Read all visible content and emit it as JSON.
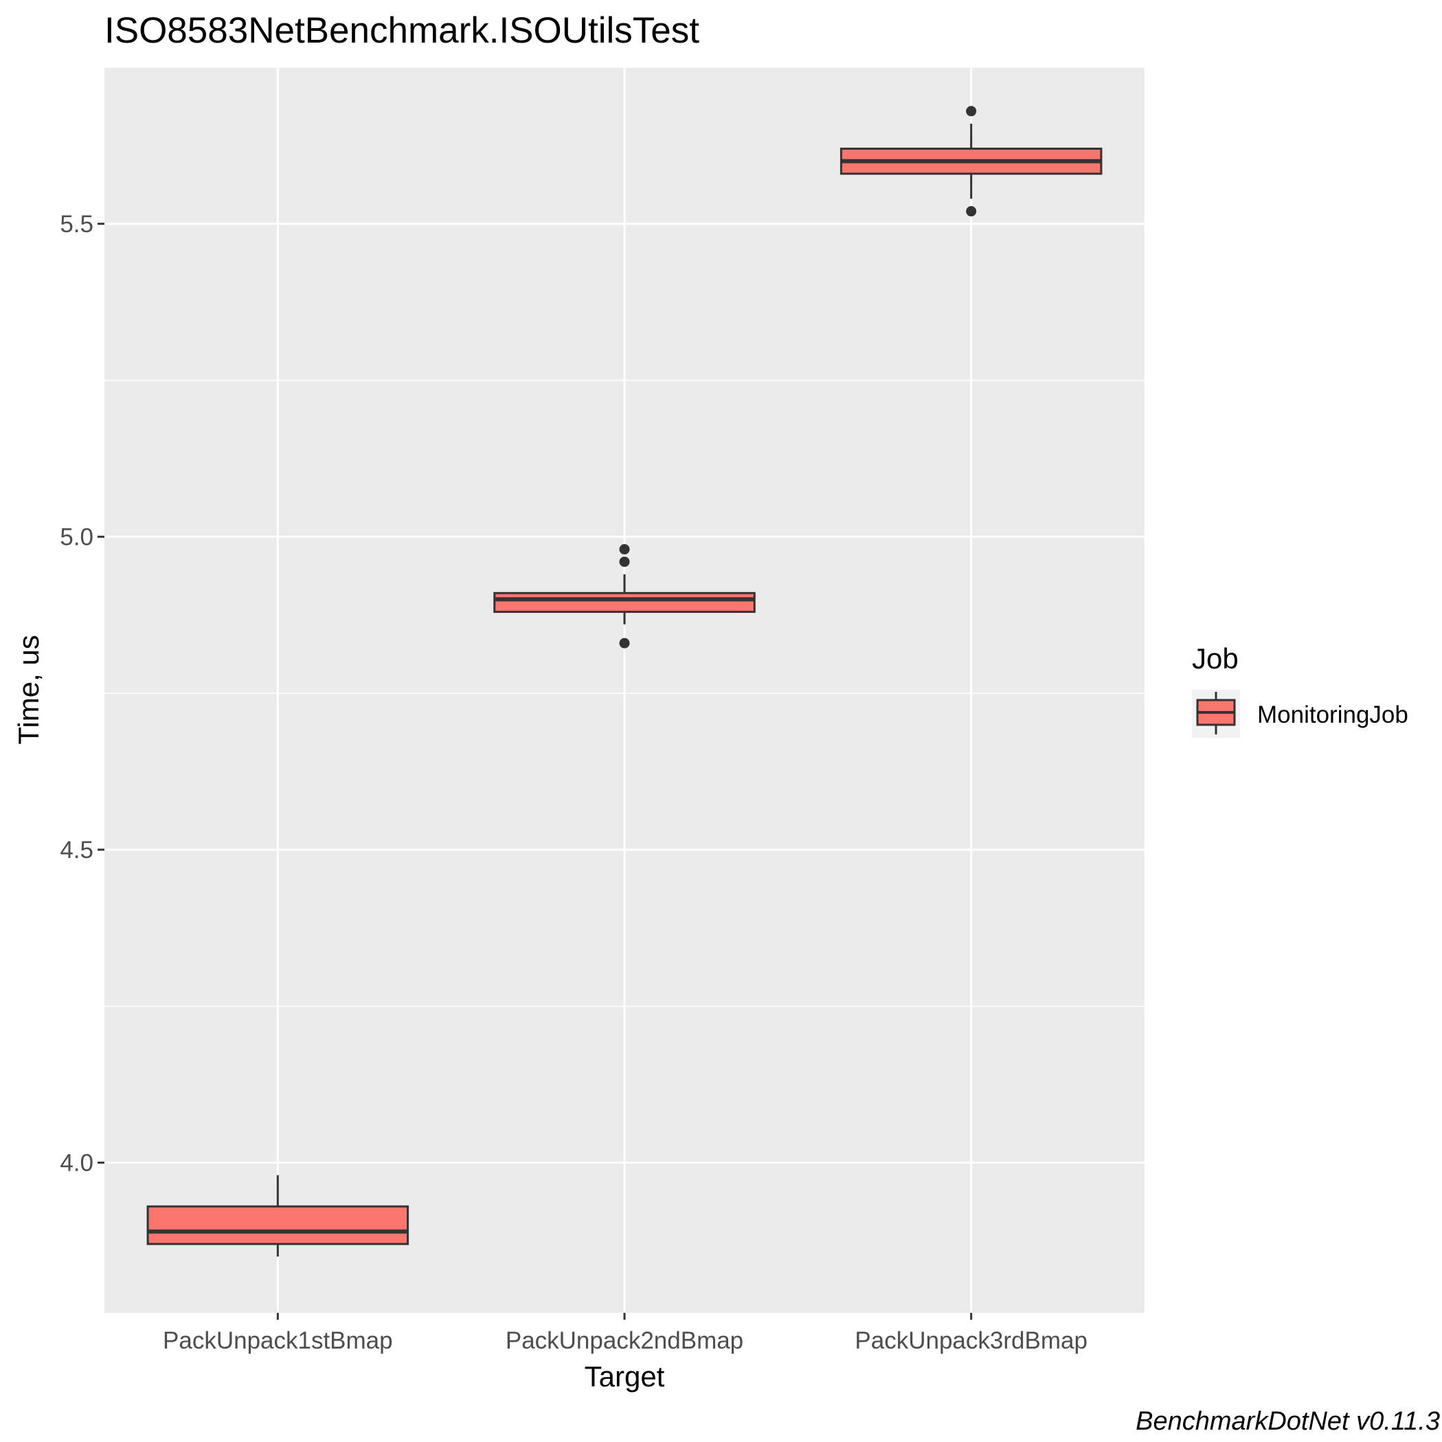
{
  "chart_data": {
    "type": "box",
    "title": "ISO8583NetBenchmark.ISOUtilsTest",
    "xlabel": "Target",
    "ylabel": "Time, us",
    "categories": [
      "PackUnpack1stBmap",
      "PackUnpack2ndBmap",
      "PackUnpack3rdBmap"
    ],
    "ylim": [
      3.76,
      5.75
    ],
    "yticks": [
      4.0,
      4.5,
      5.0,
      5.5
    ],
    "ytick_labels": [
      "4.0",
      "4.5",
      "5.0",
      "5.5"
    ],
    "grid": true,
    "series": [
      {
        "name": "MonitoringJob",
        "color": "#F8766D",
        "boxes": [
          {
            "category": "PackUnpack1stBmap",
            "whisker_low": 3.85,
            "q1": 3.87,
            "median": 3.89,
            "q3": 3.93,
            "whisker_high": 3.98,
            "outliers": []
          },
          {
            "category": "PackUnpack2ndBmap",
            "whisker_low": 4.86,
            "q1": 4.88,
            "median": 4.9,
            "q3": 4.91,
            "whisker_high": 4.94,
            "outliers": [
              4.98,
              4.96,
              4.83
            ]
          },
          {
            "category": "PackUnpack3rdBmap",
            "whisker_low": 5.54,
            "q1": 5.58,
            "median": 5.6,
            "q3": 5.62,
            "whisker_high": 5.66,
            "outliers": [
              5.68,
              5.52
            ]
          }
        ]
      }
    ],
    "legend": {
      "title": "Job",
      "position": "right",
      "entries": [
        "MonitoringJob"
      ]
    },
    "caption": "BenchmarkDotNet v0.11.3"
  }
}
